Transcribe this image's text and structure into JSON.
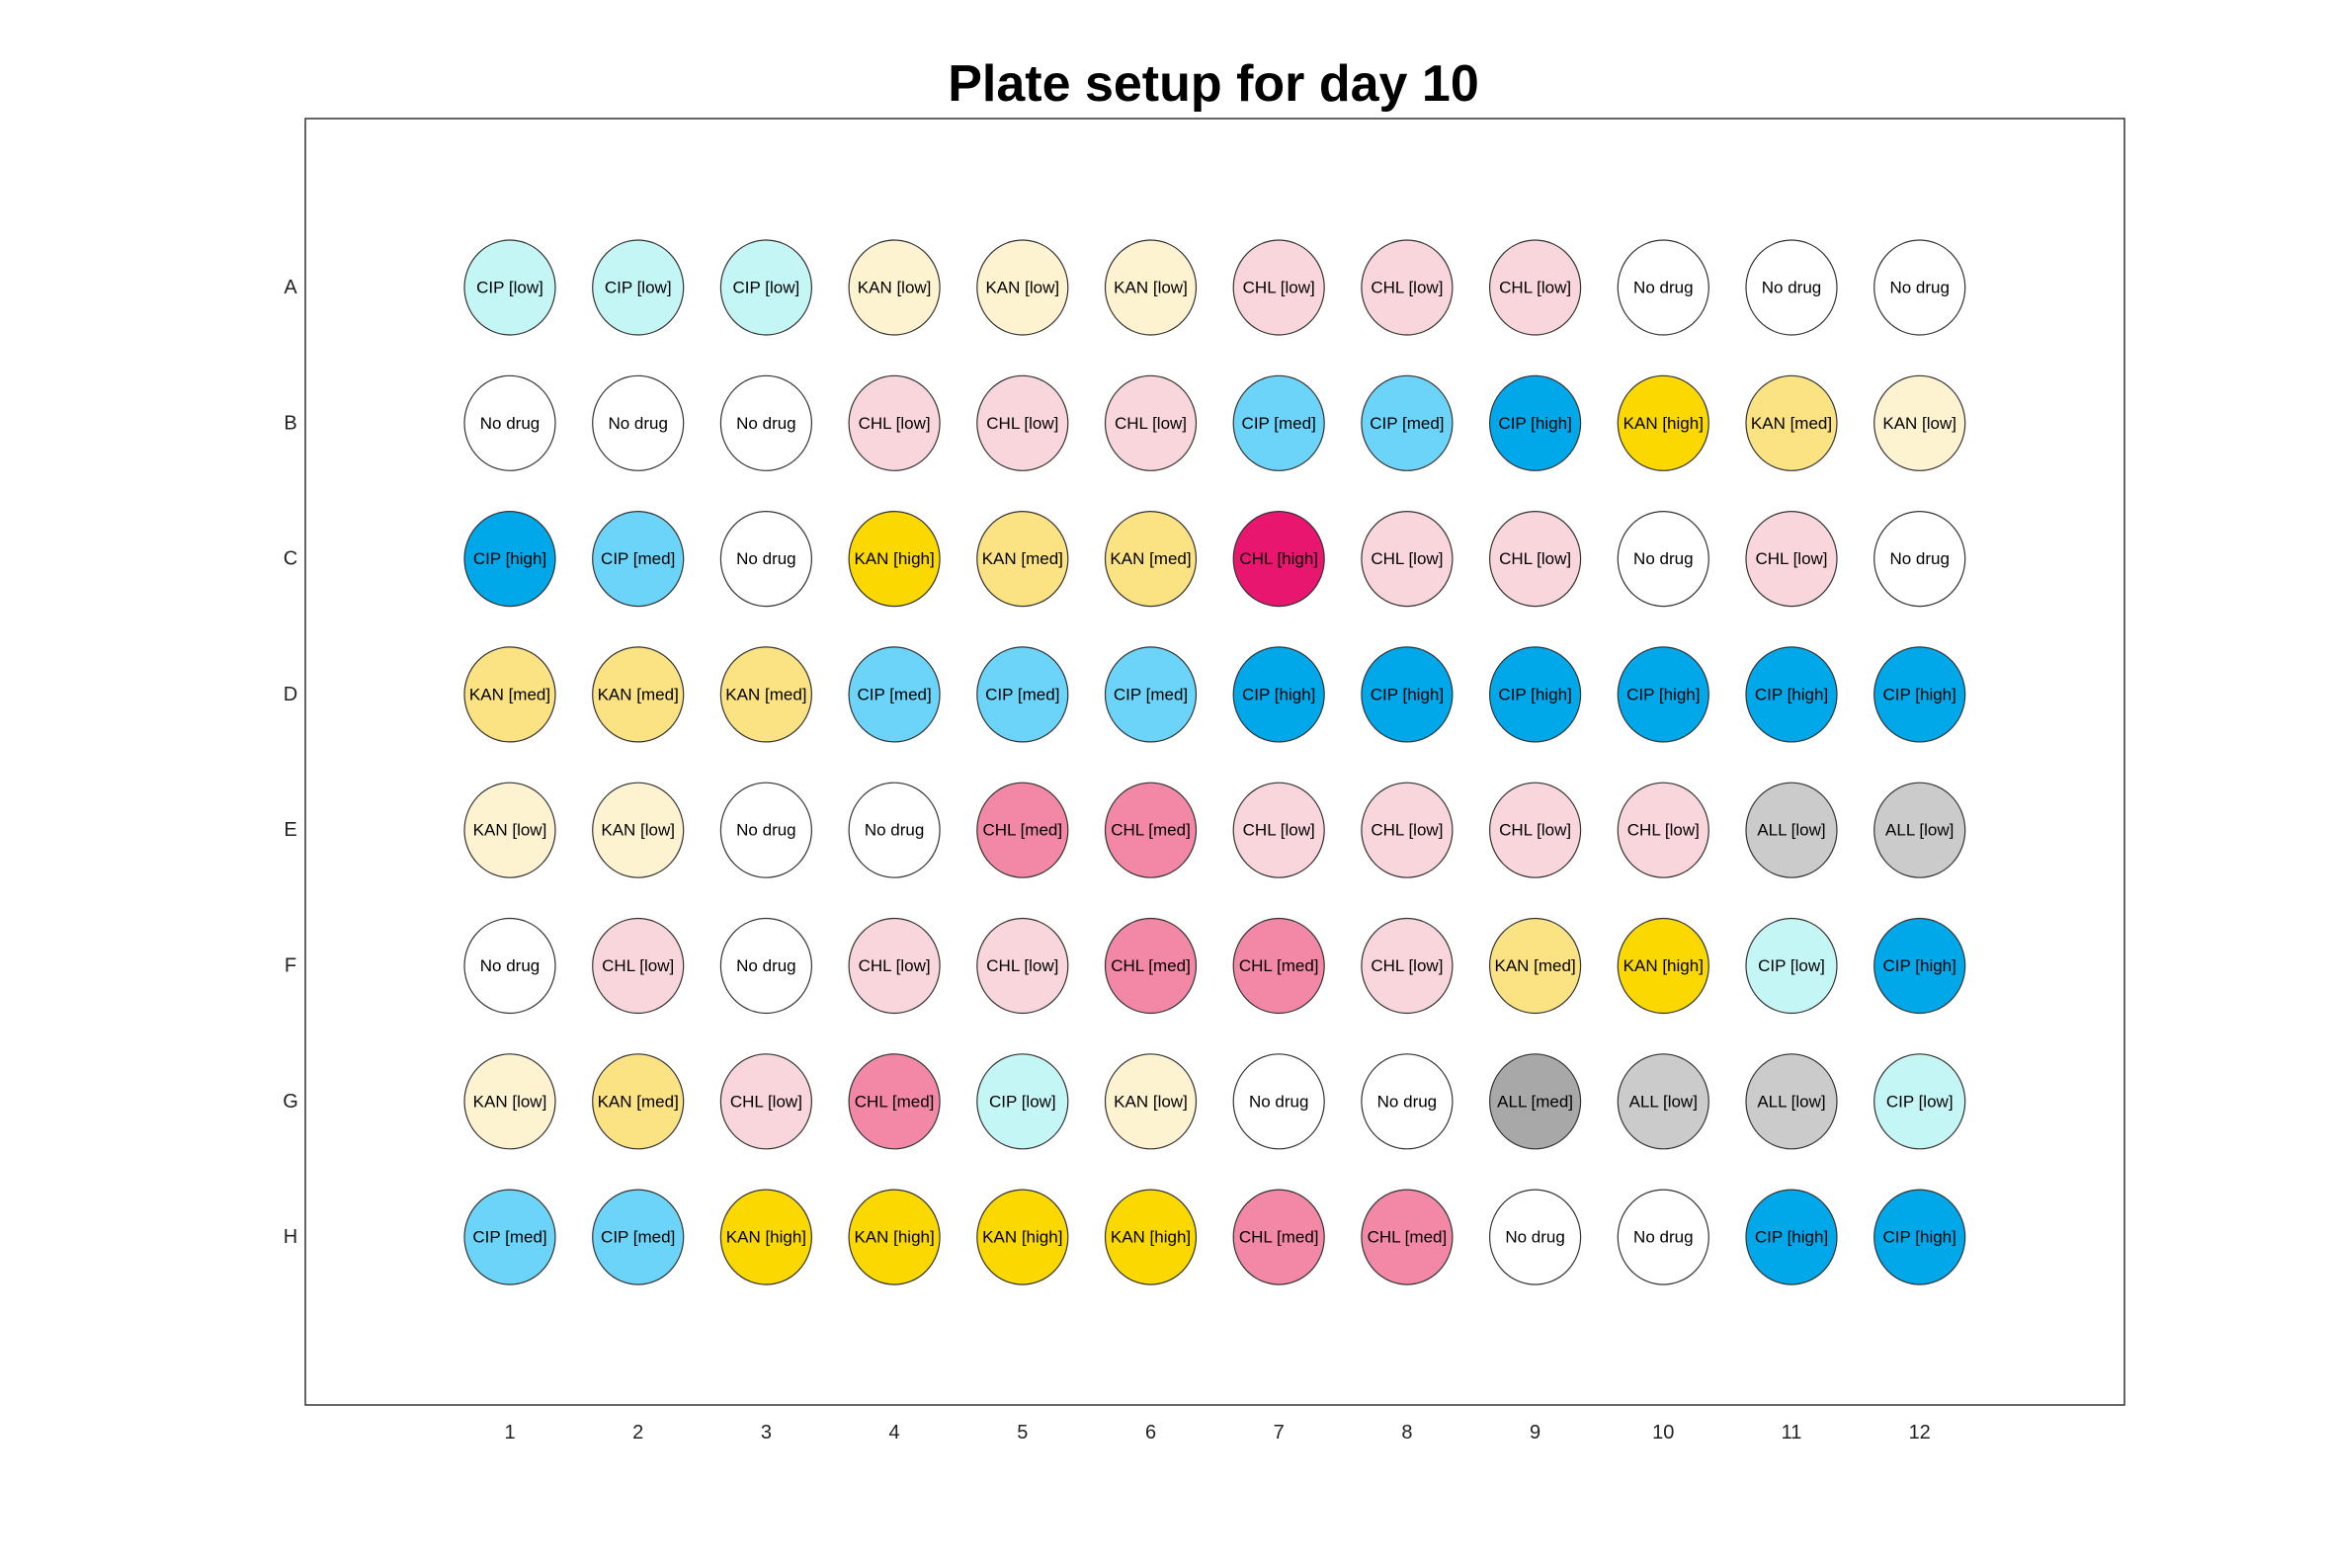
{
  "title": "Plate setup for day 10",
  "rows": [
    "A",
    "B",
    "C",
    "D",
    "E",
    "F",
    "G",
    "H"
  ],
  "columns": [
    "1",
    "2",
    "3",
    "4",
    "5",
    "6",
    "7",
    "8",
    "9",
    "10",
    "11",
    "12"
  ],
  "treatment_colors": {
    "No drug": "#ffffff",
    "CIP [low]": "#c4f6f5",
    "CIP [med]": "#6dd4f9",
    "CIP [high]": "#00a8ea",
    "KAN [low]": "#fef3d1",
    "KAN [med]": "#fbe384",
    "KAN [high]": "#fad800",
    "CHL [low]": "#f9d5dc",
    "CHL [med]": "#f287a6",
    "CHL [high]": "#e8166f",
    "ALL [low]": "#cbcbcb",
    "ALL [med]": "#a8a8a8"
  },
  "wells": [
    [
      "CIP [low]",
      "CIP [low]",
      "CIP [low]",
      "KAN [low]",
      "KAN [low]",
      "KAN [low]",
      "CHL [low]",
      "CHL [low]",
      "CHL [low]",
      "No drug",
      "No drug",
      "No drug"
    ],
    [
      "No drug",
      "No drug",
      "No drug",
      "CHL [low]",
      "CHL [low]",
      "CHL [low]",
      "CIP [med]",
      "CIP [med]",
      "CIP [high]",
      "KAN [high]",
      "KAN [med]",
      "KAN [low]"
    ],
    [
      "CIP [high]",
      "CIP [med]",
      "No drug",
      "KAN [high]",
      "KAN [med]",
      "KAN [med]",
      "CHL [high]",
      "CHL [low]",
      "CHL [low]",
      "No drug",
      "CHL [low]",
      "No drug"
    ],
    [
      "KAN [med]",
      "KAN [med]",
      "KAN [med]",
      "CIP [med]",
      "CIP [med]",
      "CIP [med]",
      "CIP [high]",
      "CIP [high]",
      "CIP [high]",
      "CIP [high]",
      "CIP [high]",
      "CIP [high]"
    ],
    [
      "KAN [low]",
      "KAN [low]",
      "No drug",
      "No drug",
      "CHL [med]",
      "CHL [med]",
      "CHL [low]",
      "CHL [low]",
      "CHL [low]",
      "CHL [low]",
      "ALL [low]",
      "ALL [low]"
    ],
    [
      "No drug",
      "CHL [low]",
      "No drug",
      "CHL [low]",
      "CHL [low]",
      "CHL [med]",
      "CHL [med]",
      "CHL [low]",
      "KAN [med]",
      "KAN [high]",
      "CIP [low]",
      "CIP [high]"
    ],
    [
      "KAN [low]",
      "KAN [med]",
      "CHL [low]",
      "CHL [med]",
      "CIP [low]",
      "KAN [low]",
      "No drug",
      "No drug",
      "ALL [med]",
      "ALL [low]",
      "ALL [low]",
      "CIP [low]"
    ],
    [
      "CIP [med]",
      "CIP [med]",
      "KAN [high]",
      "KAN [high]",
      "KAN [high]",
      "KAN [high]",
      "CHL [med]",
      "CHL [med]",
      "No drug",
      "No drug",
      "CIP [high]",
      "CIP [high]"
    ]
  ]
}
